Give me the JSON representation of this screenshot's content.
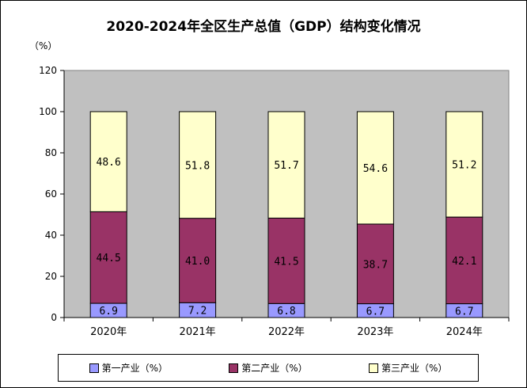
{
  "chart_data": {
    "type": "bar",
    "stacked": true,
    "title": "2020-2024年全区生产总值（GDP）结构变化情况",
    "unit_label": "（%）",
    "categories": [
      "2020年",
      "2021年",
      "2022年",
      "2023年",
      "2024年"
    ],
    "series": [
      {
        "name": "第一产业（%）",
        "color": "#9999ff",
        "values": [
          6.9,
          7.2,
          6.8,
          6.7,
          6.7
        ]
      },
      {
        "name": "第二产业（%）",
        "color": "#993366",
        "values": [
          44.5,
          41.0,
          41.5,
          38.7,
          42.1
        ]
      },
      {
        "name": "第三产业（%）",
        "color": "#ffffcc",
        "values": [
          48.6,
          51.8,
          51.7,
          54.6,
          51.2
        ]
      }
    ],
    "value_labels": [
      [
        "6.9",
        "7.2",
        "6.8",
        "6.7",
        "6.7"
      ],
      [
        "44.5",
        "41.0",
        "41.5",
        "38.7",
        "42.1"
      ],
      [
        "48.6",
        "51.8",
        "51.7",
        "54.6",
        "51.2"
      ]
    ],
    "ylim": [
      0,
      120
    ],
    "yticks": [
      0,
      20,
      40,
      60,
      80,
      100,
      120
    ],
    "plot_background": "#c0c0c0",
    "grid": false,
    "legend_position": "bottom"
  }
}
